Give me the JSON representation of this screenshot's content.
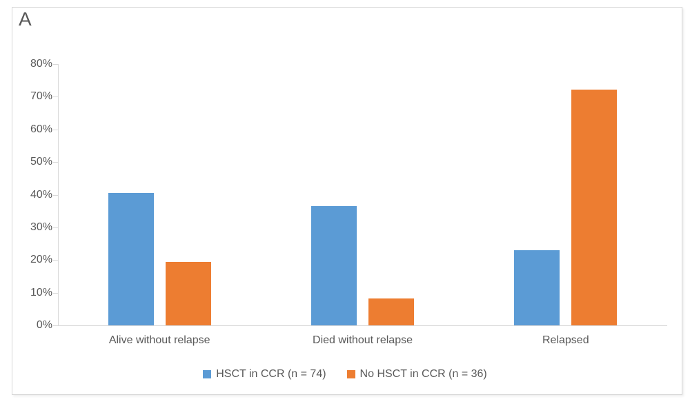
{
  "panel_label": "A",
  "colors": {
    "series_blue": "#5B9BD5",
    "series_orange": "#ED7D31",
    "axis_line": "#D9D9D9",
    "text_gray": "#595959",
    "frame_border": "#D6D6D6",
    "background": "#FFFFFF"
  },
  "chart_data": {
    "type": "bar",
    "title": "",
    "xlabel": "",
    "ylabel": "",
    "categories": [
      "Alive without relapse",
      "Died without relapse",
      "Relapsed"
    ],
    "series": [
      {
        "name": "HSCT in CCR (n = 74)",
        "color": "#5B9BD5",
        "values": [
          40.5,
          36.5,
          23.0
        ]
      },
      {
        "name": "No HSCT in CCR (n = 36)",
        "color": "#ED7D31",
        "values": [
          19.4,
          8.3,
          72.2
        ]
      }
    ],
    "ylim": [
      0,
      80
    ],
    "ytick_step": 10,
    "ytick_labels": [
      "0%",
      "10%",
      "20%",
      "30%",
      "40%",
      "50%",
      "60%",
      "70%",
      "80%"
    ],
    "grid": false,
    "legend_position": "bottom"
  }
}
